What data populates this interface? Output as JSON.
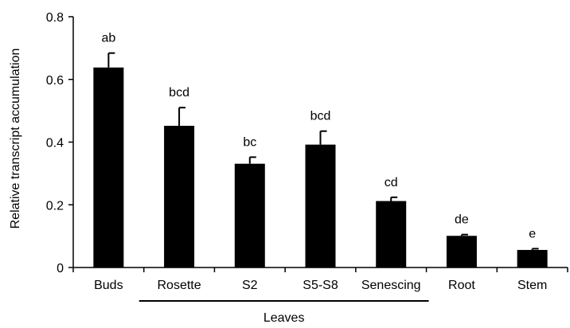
{
  "chart_data": {
    "type": "bar",
    "categories": [
      "Buds",
      "Rosette",
      "S2",
      "S5-S8",
      "Senescing",
      "Root",
      "Stem"
    ],
    "values": [
      0.638,
      0.452,
      0.331,
      0.392,
      0.212,
      0.101,
      0.056
    ],
    "errors": [
      0.046,
      0.058,
      0.021,
      0.043,
      0.012,
      0.004,
      0.004
    ],
    "significance_labels": [
      "ab",
      "bcd",
      "bc",
      "bcd",
      "cd",
      "de",
      "e"
    ],
    "xlabel": "",
    "ylabel": "Relative transcript accumulation",
    "ylim": [
      0,
      0.8
    ],
    "yticks": [
      0,
      0.2,
      0.4,
      0.6,
      0.8
    ],
    "ytick_labels": [
      "0",
      "0.2",
      "0.4",
      "0.6",
      "0.8"
    ],
    "group": {
      "label": "Leaves",
      "categories": [
        "Rosette",
        "S2",
        "S5-S8",
        "Senescing"
      ]
    },
    "grid": false,
    "legend": "none",
    "bar_color": "#000000"
  }
}
